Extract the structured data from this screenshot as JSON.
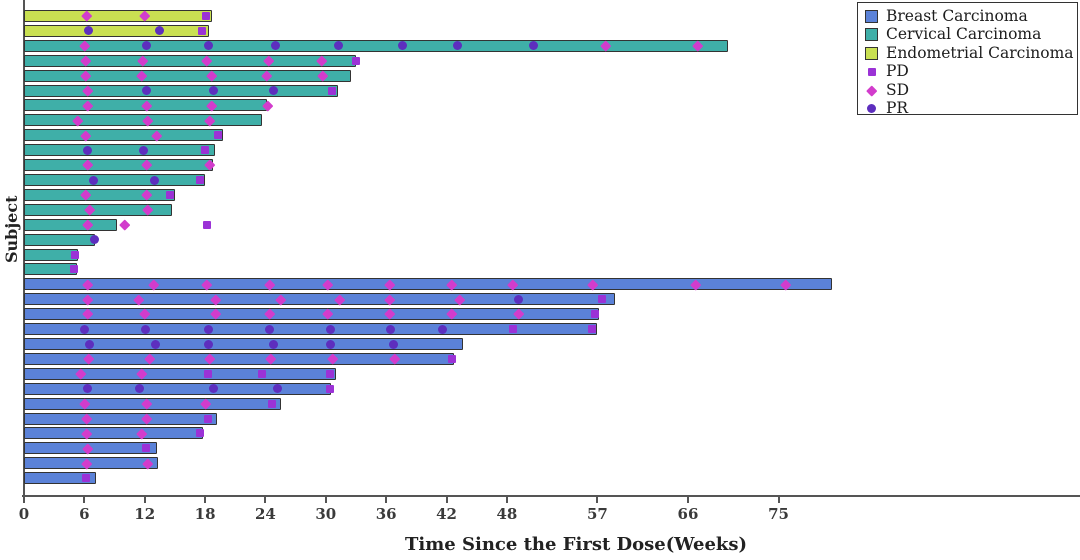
{
  "chart_data": {
    "type": "bar",
    "subtype": "horizontal-swimmer-plot",
    "title": "",
    "xlabel": "Time Since the First Dose(Weeks)",
    "ylabel": "Subject",
    "x_ticks": [
      0,
      6,
      12,
      18,
      24,
      30,
      36,
      42,
      48,
      57,
      66,
      75
    ],
    "xlim": [
      0,
      105
    ],
    "grid": false,
    "legend_position": "top-right",
    "groups": {
      "breast": {
        "label": "Breast Carcinoma",
        "color": "#5b82d8"
      },
      "cervical": {
        "label": "Cervical Carcinoma",
        "color": "#3fafa8"
      },
      "endometrial": {
        "label": "Endometrial Carcinoma",
        "color": "#c9e052"
      }
    },
    "marker_types": {
      "PD": {
        "label": "PD",
        "shape": "square",
        "color": "#9b32d6"
      },
      "SD": {
        "label": "SD",
        "shape": "diamond",
        "color": "#d23ccc"
      },
      "PR": {
        "label": "PR",
        "shape": "circle",
        "color": "#5d2ebe"
      }
    },
    "subjects": [
      {
        "group": "endometrial",
        "end": 18.7,
        "markers": [
          {
            "t": "SD",
            "w": 6.2
          },
          {
            "t": "SD",
            "w": 12.0
          },
          {
            "t": "PD",
            "w": 18.1
          }
        ]
      },
      {
        "group": "endometrial",
        "end": 18.4,
        "markers": [
          {
            "t": "PR",
            "w": 6.4
          },
          {
            "t": "PR",
            "w": 13.5
          },
          {
            "t": "PD",
            "w": 17.7
          }
        ]
      },
      {
        "group": "cervical",
        "end": 70.0,
        "markers": [
          {
            "t": "SD",
            "w": 6.0
          },
          {
            "t": "PR",
            "w": 12.2
          },
          {
            "t": "PR",
            "w": 18.3
          },
          {
            "t": "PR",
            "w": 25.0
          },
          {
            "t": "PR",
            "w": 31.3
          },
          {
            "t": "PR",
            "w": 37.6
          },
          {
            "t": "PR",
            "w": 43.1
          },
          {
            "t": "PR",
            "w": 50.6
          },
          {
            "t": "SD",
            "w": 57.8
          },
          {
            "t": "SD",
            "w": 67.0
          }
        ]
      },
      {
        "group": "cervical",
        "end": 33.0,
        "markers": [
          {
            "t": "SD",
            "w": 6.1
          },
          {
            "t": "SD",
            "w": 11.8
          },
          {
            "t": "SD",
            "w": 18.2
          },
          {
            "t": "SD",
            "w": 24.3
          },
          {
            "t": "SD",
            "w": 29.6
          },
          {
            "t": "PD",
            "w": 33.0
          }
        ]
      },
      {
        "group": "cervical",
        "end": 32.5,
        "markers": [
          {
            "t": "SD",
            "w": 6.1
          },
          {
            "t": "SD",
            "w": 11.7
          },
          {
            "t": "SD",
            "w": 18.7
          },
          {
            "t": "SD",
            "w": 24.1
          },
          {
            "t": "SD",
            "w": 29.7
          }
        ]
      },
      {
        "group": "cervical",
        "end": 31.2,
        "markers": [
          {
            "t": "SD",
            "w": 6.3
          },
          {
            "t": "PR",
            "w": 12.2
          },
          {
            "t": "PR",
            "w": 18.8
          },
          {
            "t": "PR",
            "w": 24.8
          },
          {
            "t": "PD",
            "w": 30.6
          }
        ]
      },
      {
        "group": "cervical",
        "end": 24.2,
        "markers": [
          {
            "t": "SD",
            "w": 6.3
          },
          {
            "t": "SD",
            "w": 12.2
          },
          {
            "t": "SD",
            "w": 18.7
          },
          {
            "t": "SD",
            "w": 24.2
          }
        ]
      },
      {
        "group": "cervical",
        "end": 23.7,
        "markers": [
          {
            "t": "SD",
            "w": 5.3
          },
          {
            "t": "SD",
            "w": 12.3
          },
          {
            "t": "SD",
            "w": 18.5
          }
        ]
      },
      {
        "group": "cervical",
        "end": 19.8,
        "markers": [
          {
            "t": "SD",
            "w": 6.1
          },
          {
            "t": "SD",
            "w": 13.2
          },
          {
            "t": "PD",
            "w": 19.3
          }
        ]
      },
      {
        "group": "cervical",
        "end": 19.0,
        "markers": [
          {
            "t": "PR",
            "w": 6.3
          },
          {
            "t": "PR",
            "w": 11.9
          },
          {
            "t": "PD",
            "w": 18.0
          }
        ]
      },
      {
        "group": "cervical",
        "end": 18.8,
        "markers": [
          {
            "t": "SD",
            "w": 6.3
          },
          {
            "t": "SD",
            "w": 12.2
          },
          {
            "t": "SD",
            "w": 18.5
          }
        ]
      },
      {
        "group": "cervical",
        "end": 18.0,
        "markers": [
          {
            "t": "PR",
            "w": 6.9
          },
          {
            "t": "PR",
            "w": 13.0
          },
          {
            "t": "PD",
            "w": 17.5
          }
        ]
      },
      {
        "group": "cervical",
        "end": 15.0,
        "markers": [
          {
            "t": "SD",
            "w": 6.1
          },
          {
            "t": "SD",
            "w": 12.2
          },
          {
            "t": "PD",
            "w": 14.5
          }
        ]
      },
      {
        "group": "cervical",
        "end": 14.7,
        "markers": [
          {
            "t": "SD",
            "w": 6.5
          },
          {
            "t": "SD",
            "w": 12.3
          }
        ]
      },
      {
        "group": "cervical",
        "end": 9.2,
        "markers": [
          {
            "t": "SD",
            "w": 6.3
          },
          {
            "t": "SD",
            "w": 10.0
          },
          {
            "t": "PD",
            "w": 18.2
          }
        ]
      },
      {
        "group": "cervical",
        "end": 7.1,
        "markers": [
          {
            "t": "PR",
            "w": 7.0
          }
        ]
      },
      {
        "group": "cervical",
        "end": 5.4,
        "markers": [
          {
            "t": "PD",
            "w": 5.1
          }
        ]
      },
      {
        "group": "cervical",
        "end": 5.3,
        "markers": [
          {
            "t": "PD",
            "w": 5.0
          }
        ]
      },
      {
        "group": "breast",
        "end": 80.3,
        "markers": [
          {
            "t": "SD",
            "w": 6.3
          },
          {
            "t": "SD",
            "w": 12.9
          },
          {
            "t": "SD",
            "w": 18.2
          },
          {
            "t": "SD",
            "w": 24.4
          },
          {
            "t": "SD",
            "w": 30.2
          },
          {
            "t": "SD",
            "w": 36.4
          },
          {
            "t": "SD",
            "w": 42.5
          },
          {
            "t": "SD",
            "w": 48.6
          },
          {
            "t": "SD",
            "w": 56.5
          },
          {
            "t": "SD",
            "w": 66.8
          },
          {
            "t": "SD",
            "w": 75.7
          }
        ]
      },
      {
        "group": "breast",
        "end": 58.7,
        "markers": [
          {
            "t": "SD",
            "w": 6.3
          },
          {
            "t": "SD",
            "w": 11.4
          },
          {
            "t": "SD",
            "w": 19.1
          },
          {
            "t": "SD",
            "w": 25.5
          },
          {
            "t": "SD",
            "w": 31.4
          },
          {
            "t": "SD",
            "w": 36.4
          },
          {
            "t": "SD",
            "w": 43.3
          },
          {
            "t": "PR",
            "w": 49.2
          },
          {
            "t": "PD",
            "w": 57.5
          }
        ]
      },
      {
        "group": "breast",
        "end": 57.2,
        "markers": [
          {
            "t": "SD",
            "w": 6.3
          },
          {
            "t": "SD",
            "w": 12.0
          },
          {
            "t": "SD",
            "w": 19.1
          },
          {
            "t": "SD",
            "w": 24.4
          },
          {
            "t": "SD",
            "w": 30.2
          },
          {
            "t": "SD",
            "w": 36.4
          },
          {
            "t": "SD",
            "w": 42.5
          },
          {
            "t": "SD",
            "w": 49.2
          },
          {
            "t": "PD",
            "w": 56.8
          }
        ]
      },
      {
        "group": "breast",
        "end": 57.0,
        "markers": [
          {
            "t": "PR",
            "w": 6.0
          },
          {
            "t": "PR",
            "w": 12.1
          },
          {
            "t": "PR",
            "w": 18.3
          },
          {
            "t": "PR",
            "w": 24.4
          },
          {
            "t": "PR",
            "w": 30.5
          },
          {
            "t": "PR",
            "w": 36.4
          },
          {
            "t": "PR",
            "w": 41.6
          },
          {
            "t": "PD",
            "w": 48.6
          },
          {
            "t": "PD",
            "w": 56.5
          }
        ]
      },
      {
        "group": "breast",
        "end": 43.6,
        "markers": [
          {
            "t": "PR",
            "w": 6.5
          },
          {
            "t": "PR",
            "w": 13.1
          },
          {
            "t": "PR",
            "w": 18.3
          },
          {
            "t": "PR",
            "w": 24.8
          },
          {
            "t": "PR",
            "w": 30.5
          },
          {
            "t": "PR",
            "w": 36.7
          }
        ]
      },
      {
        "group": "breast",
        "end": 42.7,
        "markers": [
          {
            "t": "SD",
            "w": 6.4
          },
          {
            "t": "SD",
            "w": 12.5
          },
          {
            "t": "SD",
            "w": 18.5
          },
          {
            "t": "SD",
            "w": 24.5
          },
          {
            "t": "SD",
            "w": 30.7
          },
          {
            "t": "SD",
            "w": 36.9
          },
          {
            "t": "PD",
            "w": 42.5
          }
        ]
      },
      {
        "group": "breast",
        "end": 31.0,
        "markers": [
          {
            "t": "SD",
            "w": 5.6
          },
          {
            "t": "SD",
            "w": 11.7
          },
          {
            "t": "PD",
            "w": 18.3
          },
          {
            "t": "PD",
            "w": 23.7
          },
          {
            "t": "PD",
            "w": 30.4
          }
        ]
      },
      {
        "group": "breast",
        "end": 30.5,
        "markers": [
          {
            "t": "PR",
            "w": 6.3
          },
          {
            "t": "PR",
            "w": 11.5
          },
          {
            "t": "PR",
            "w": 18.8
          },
          {
            "t": "PR",
            "w": 25.2
          },
          {
            "t": "PD",
            "w": 30.4
          }
        ]
      },
      {
        "group": "breast",
        "end": 25.5,
        "markers": [
          {
            "t": "SD",
            "w": 6.0
          },
          {
            "t": "SD",
            "w": 12.2
          },
          {
            "t": "SD",
            "w": 18.1
          },
          {
            "t": "PD",
            "w": 24.7
          }
        ]
      },
      {
        "group": "breast",
        "end": 19.2,
        "markers": [
          {
            "t": "SD",
            "w": 6.2
          },
          {
            "t": "SD",
            "w": 12.2
          },
          {
            "t": "PD",
            "w": 18.3
          }
        ]
      },
      {
        "group": "breast",
        "end": 17.8,
        "markers": [
          {
            "t": "SD",
            "w": 6.2
          },
          {
            "t": "SD",
            "w": 11.7
          },
          {
            "t": "PD",
            "w": 17.5
          }
        ]
      },
      {
        "group": "breast",
        "end": 13.2,
        "markers": [
          {
            "t": "SD",
            "w": 6.3
          },
          {
            "t": "PD",
            "w": 12.1
          }
        ]
      },
      {
        "group": "breast",
        "end": 13.3,
        "markers": [
          {
            "t": "SD",
            "w": 6.2
          },
          {
            "t": "SD",
            "w": 12.3
          }
        ]
      },
      {
        "group": "breast",
        "end": 7.2,
        "markers": [
          {
            "t": "PD",
            "w": 6.2
          }
        ]
      }
    ],
    "legend": {
      "patch_entries": [
        "breast",
        "cervical",
        "endometrial"
      ],
      "marker_entries": [
        "PD",
        "SD",
        "PR"
      ]
    }
  }
}
